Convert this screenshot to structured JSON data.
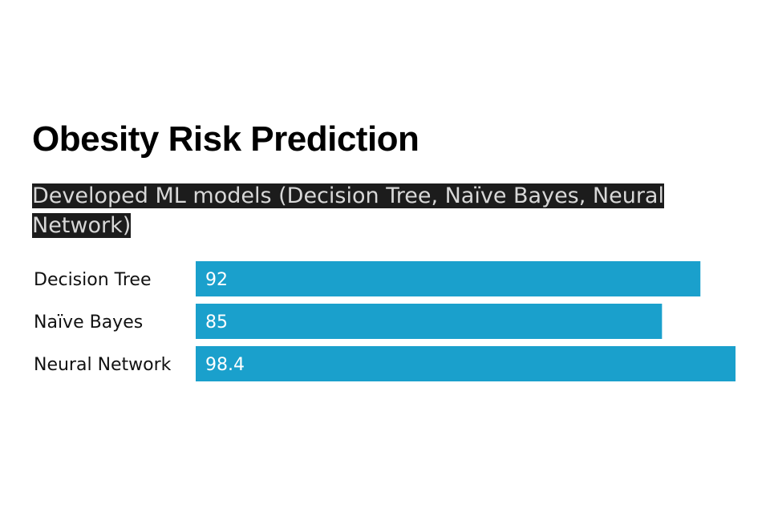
{
  "chart_data": {
    "type": "bar",
    "orientation": "horizontal",
    "title": "Obesity Risk Prediction",
    "subtitle": "Developed ML models (Decision Tree, Naïve Bayes, Neural Network)",
    "categories": [
      "Decision Tree",
      "Naïve Bayes",
      "Neural Network"
    ],
    "values": [
      92,
      85,
      98.4
    ],
    "value_labels": [
      "92",
      "85",
      "98.4"
    ],
    "xlim": [
      0,
      98.4
    ],
    "grid": false,
    "legend": "none",
    "bar_color": "#1aa0cc"
  }
}
